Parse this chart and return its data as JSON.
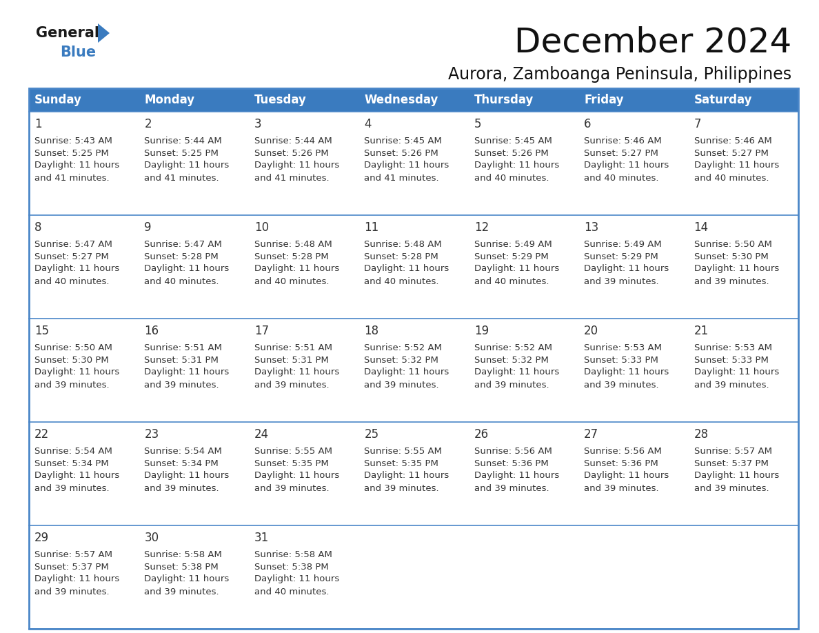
{
  "title": "December 2024",
  "subtitle": "Aurora, Zamboanga Peninsula, Philippines",
  "header_color": "#3a7bbf",
  "header_text_color": "#ffffff",
  "cell_bg_even": "#f9f9f9",
  "cell_bg_odd": "#ffffff",
  "border_color": "#4a86c8",
  "text_color": "#333333",
  "day_num_color": "#333333",
  "days_of_week": [
    "Sunday",
    "Monday",
    "Tuesday",
    "Wednesday",
    "Thursday",
    "Friday",
    "Saturday"
  ],
  "logo_general_color": "#1a1a1a",
  "logo_blue_color": "#3a7bbf",
  "logo_triangle_color": "#3a7bbf",
  "title_fontsize": 36,
  "subtitle_fontsize": 17,
  "header_fontsize": 12,
  "day_num_fontsize": 12,
  "cell_text_fontsize": 9.5,
  "weeks": [
    [
      {
        "day": 1,
        "sunrise": "5:43 AM",
        "sunset": "5:25 PM",
        "daylight": "11 hours and 41 minutes."
      },
      {
        "day": 2,
        "sunrise": "5:44 AM",
        "sunset": "5:25 PM",
        "daylight": "11 hours and 41 minutes."
      },
      {
        "day": 3,
        "sunrise": "5:44 AM",
        "sunset": "5:26 PM",
        "daylight": "11 hours and 41 minutes."
      },
      {
        "day": 4,
        "sunrise": "5:45 AM",
        "sunset": "5:26 PM",
        "daylight": "11 hours and 41 minutes."
      },
      {
        "day": 5,
        "sunrise": "5:45 AM",
        "sunset": "5:26 PM",
        "daylight": "11 hours and 40 minutes."
      },
      {
        "day": 6,
        "sunrise": "5:46 AM",
        "sunset": "5:27 PM",
        "daylight": "11 hours and 40 minutes."
      },
      {
        "day": 7,
        "sunrise": "5:46 AM",
        "sunset": "5:27 PM",
        "daylight": "11 hours and 40 minutes."
      }
    ],
    [
      {
        "day": 8,
        "sunrise": "5:47 AM",
        "sunset": "5:27 PM",
        "daylight": "11 hours and 40 minutes."
      },
      {
        "day": 9,
        "sunrise": "5:47 AM",
        "sunset": "5:28 PM",
        "daylight": "11 hours and 40 minutes."
      },
      {
        "day": 10,
        "sunrise": "5:48 AM",
        "sunset": "5:28 PM",
        "daylight": "11 hours and 40 minutes."
      },
      {
        "day": 11,
        "sunrise": "5:48 AM",
        "sunset": "5:28 PM",
        "daylight": "11 hours and 40 minutes."
      },
      {
        "day": 12,
        "sunrise": "5:49 AM",
        "sunset": "5:29 PM",
        "daylight": "11 hours and 40 minutes."
      },
      {
        "day": 13,
        "sunrise": "5:49 AM",
        "sunset": "5:29 PM",
        "daylight": "11 hours and 39 minutes."
      },
      {
        "day": 14,
        "sunrise": "5:50 AM",
        "sunset": "5:30 PM",
        "daylight": "11 hours and 39 minutes."
      }
    ],
    [
      {
        "day": 15,
        "sunrise": "5:50 AM",
        "sunset": "5:30 PM",
        "daylight": "11 hours and 39 minutes."
      },
      {
        "day": 16,
        "sunrise": "5:51 AM",
        "sunset": "5:31 PM",
        "daylight": "11 hours and 39 minutes."
      },
      {
        "day": 17,
        "sunrise": "5:51 AM",
        "sunset": "5:31 PM",
        "daylight": "11 hours and 39 minutes."
      },
      {
        "day": 18,
        "sunrise": "5:52 AM",
        "sunset": "5:32 PM",
        "daylight": "11 hours and 39 minutes."
      },
      {
        "day": 19,
        "sunrise": "5:52 AM",
        "sunset": "5:32 PM",
        "daylight": "11 hours and 39 minutes."
      },
      {
        "day": 20,
        "sunrise": "5:53 AM",
        "sunset": "5:33 PM",
        "daylight": "11 hours and 39 minutes."
      },
      {
        "day": 21,
        "sunrise": "5:53 AM",
        "sunset": "5:33 PM",
        "daylight": "11 hours and 39 minutes."
      }
    ],
    [
      {
        "day": 22,
        "sunrise": "5:54 AM",
        "sunset": "5:34 PM",
        "daylight": "11 hours and 39 minutes."
      },
      {
        "day": 23,
        "sunrise": "5:54 AM",
        "sunset": "5:34 PM",
        "daylight": "11 hours and 39 minutes."
      },
      {
        "day": 24,
        "sunrise": "5:55 AM",
        "sunset": "5:35 PM",
        "daylight": "11 hours and 39 minutes."
      },
      {
        "day": 25,
        "sunrise": "5:55 AM",
        "sunset": "5:35 PM",
        "daylight": "11 hours and 39 minutes."
      },
      {
        "day": 26,
        "sunrise": "5:56 AM",
        "sunset": "5:36 PM",
        "daylight": "11 hours and 39 minutes."
      },
      {
        "day": 27,
        "sunrise": "5:56 AM",
        "sunset": "5:36 PM",
        "daylight": "11 hours and 39 minutes."
      },
      {
        "day": 28,
        "sunrise": "5:57 AM",
        "sunset": "5:37 PM",
        "daylight": "11 hours and 39 minutes."
      }
    ],
    [
      {
        "day": 29,
        "sunrise": "5:57 AM",
        "sunset": "5:37 PM",
        "daylight": "11 hours and 39 minutes."
      },
      {
        "day": 30,
        "sunrise": "5:58 AM",
        "sunset": "5:38 PM",
        "daylight": "11 hours and 39 minutes."
      },
      {
        "day": 31,
        "sunrise": "5:58 AM",
        "sunset": "5:38 PM",
        "daylight": "11 hours and 40 minutes."
      },
      null,
      null,
      null,
      null
    ]
  ]
}
